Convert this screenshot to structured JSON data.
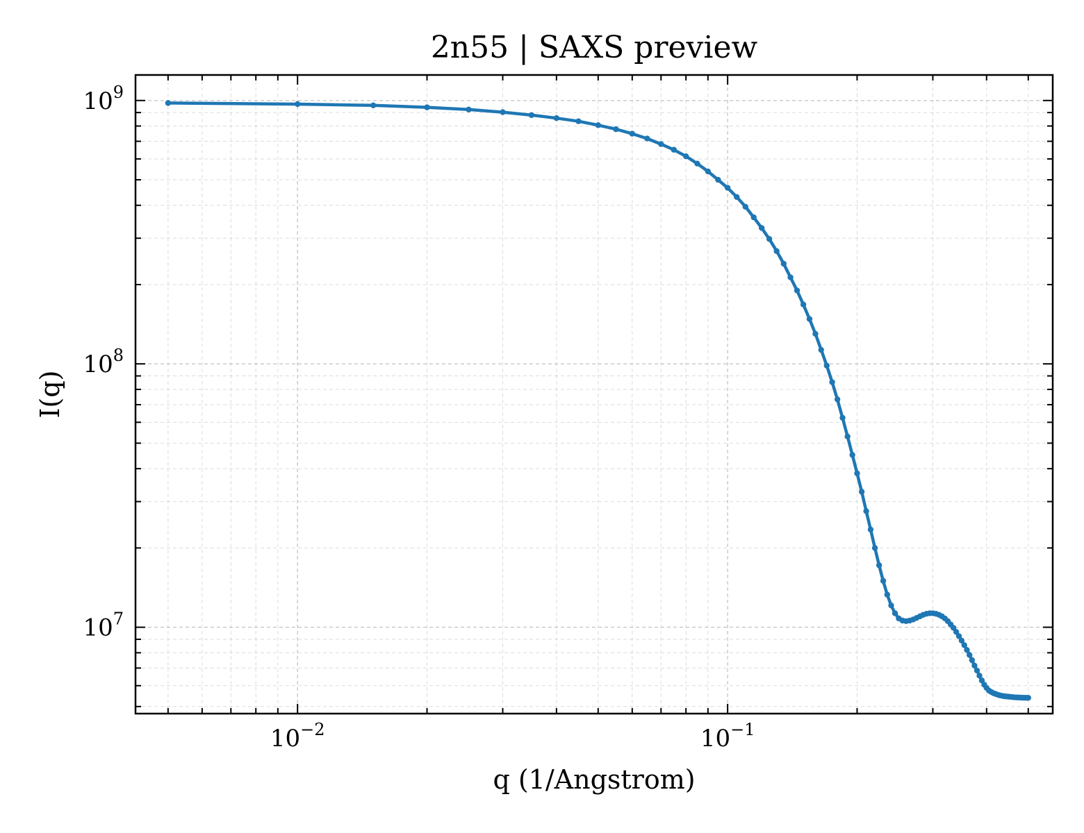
{
  "chart_data": {
    "type": "line",
    "title": "2n55 | SAXS preview",
    "xlabel": "q (1/Angstrom)",
    "ylabel": "I(q)",
    "xscale": "log",
    "yscale": "log",
    "xlim": [
      0.0042,
      0.57
    ],
    "ylim": [
      4700000,
      1250000000
    ],
    "grid": true,
    "legend": "none",
    "color": "#1f77b4",
    "x_ticks": [
      {
        "value": 0.01,
        "base": "10",
        "exp": "−2"
      },
      {
        "value": 0.1,
        "base": "10",
        "exp": "−1"
      }
    ],
    "y_ticks": [
      {
        "value": 10000000,
        "base": "10",
        "exp": "7"
      },
      {
        "value": 100000000,
        "base": "10",
        "exp": "8"
      },
      {
        "value": 1000000000,
        "base": "10",
        "exp": "9"
      }
    ],
    "series": [
      {
        "x": [
          0.005,
          0.01,
          0.015,
          0.02,
          0.025,
          0.03,
          0.035,
          0.04,
          0.045,
          0.05,
          0.055,
          0.06,
          0.065,
          0.07,
          0.075,
          0.08,
          0.085,
          0.09,
          0.095,
          0.1,
          0.105,
          0.11,
          0.115,
          0.12,
          0.125,
          0.13,
          0.135,
          0.14,
          0.145,
          0.15,
          0.155,
          0.16,
          0.165,
          0.17,
          0.175,
          0.18,
          0.185,
          0.19,
          0.195,
          0.2,
          0.205,
          0.21,
          0.215,
          0.22,
          0.225,
          0.23,
          0.235,
          0.24,
          0.245,
          0.25,
          0.255,
          0.26,
          0.265,
          0.27,
          0.275,
          0.28,
          0.285,
          0.29,
          0.295,
          0.3,
          0.305,
          0.31,
          0.315,
          0.32,
          0.325,
          0.33,
          0.335,
          0.34,
          0.345,
          0.35,
          0.355,
          0.36,
          0.365,
          0.37,
          0.375,
          0.38,
          0.385,
          0.39,
          0.395,
          0.4,
          0.405,
          0.41,
          0.415,
          0.42,
          0.425,
          0.43,
          0.435,
          0.44,
          0.445,
          0.45,
          0.455,
          0.46,
          0.465,
          0.47,
          0.475,
          0.48,
          0.485,
          0.49,
          0.495,
          0.5
        ],
        "y": [
          978000000,
          969000000,
          958000000,
          942000000,
          924000000,
          903000000,
          880000000,
          857000000,
          834000000,
          806000000,
          778000000,
          748000000,
          717000000,
          683000000,
          650000000,
          614000000,
          576000000,
          538000000,
          500000000,
          466000000,
          430000000,
          395000000,
          360000000,
          328000000,
          298000000,
          268000000,
          240000000,
          213000000,
          190000000,
          168000000,
          148000000,
          130000000,
          113000000,
          98500000,
          85200000,
          73300000,
          62400000,
          53000000,
          45100000,
          38400000,
          32700000,
          27600000,
          23500000,
          20000000,
          17200000,
          15000000,
          13300000,
          12100000,
          11300000,
          10800000,
          10600000,
          10550000,
          10600000,
          10700000,
          10850000,
          11000000,
          11150000,
          11250000,
          11300000,
          11300000,
          11250000,
          11150000,
          11000000,
          10800000,
          10550000,
          10250000,
          9950000,
          9600000,
          9250000,
          8900000,
          8550000,
          8200000,
          7850000,
          7500000,
          7150000,
          6850000,
          6550000,
          6280000,
          6050000,
          5880000,
          5750000,
          5680000,
          5620000,
          5580000,
          5540000,
          5510000,
          5490000,
          5470000,
          5460000,
          5450000,
          5440000,
          5430000,
          5420000,
          5415000,
          5410000,
          5405000,
          5400000,
          5398000,
          5396000,
          5395000
        ]
      }
    ]
  }
}
